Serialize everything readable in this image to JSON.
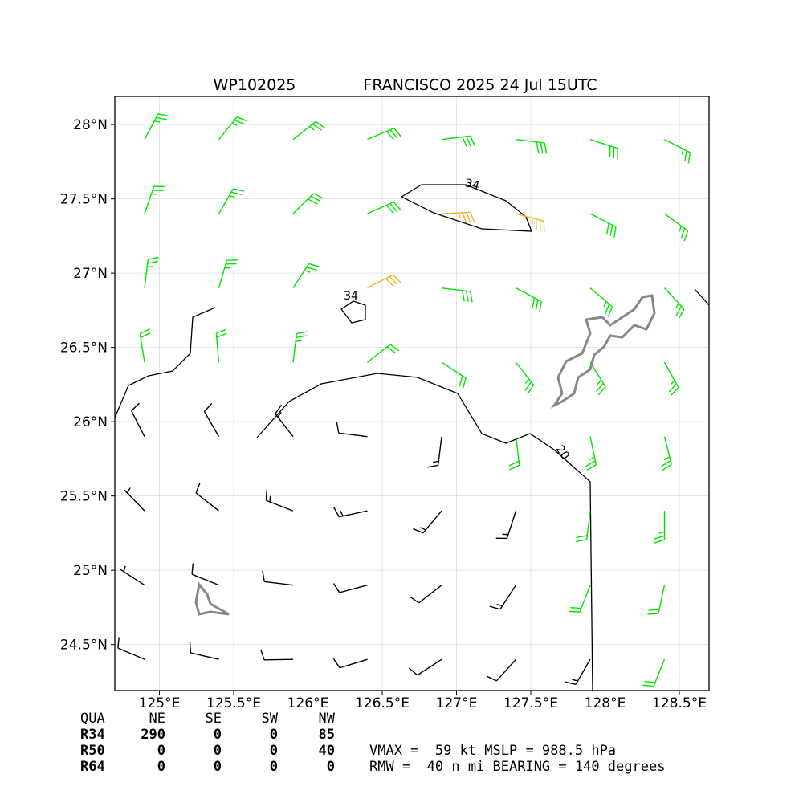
{
  "chart_data": {
    "type": "barbs",
    "title": "WP102025",
    "subtitle": "FRANCISCO 2025 24 Jul 15UTC",
    "xlim": [
      124.7,
      128.7
    ],
    "ylim": [
      24.19,
      28.19
    ],
    "xticks": [
      {
        "value": 125,
        "label": "125°E"
      },
      {
        "value": 125.5,
        "label": "125.5°E"
      },
      {
        "value": 126,
        "label": "126°E"
      },
      {
        "value": 126.5,
        "label": "126.5°E"
      },
      {
        "value": 127,
        "label": "127°E"
      },
      {
        "value": 127.5,
        "label": "127.5°E"
      },
      {
        "value": 128,
        "label": "128°E"
      },
      {
        "value": 128.5,
        "label": "128.5°E"
      }
    ],
    "yticks": [
      {
        "value": 24.5,
        "label": "24.5°N"
      },
      {
        "value": 25,
        "label": "25°N"
      },
      {
        "value": 25.5,
        "label": "25.5°N"
      },
      {
        "value": 26,
        "label": "26°N"
      },
      {
        "value": 26.5,
        "label": "26.5°N"
      },
      {
        "value": 27,
        "label": "27°N"
      },
      {
        "value": 27.5,
        "label": "27.5°N"
      },
      {
        "value": 28,
        "label": "28°N"
      }
    ],
    "grid": true,
    "levels": [
      20,
      34
    ],
    "colors": [
      "#000000",
      "#00e400",
      "#f0b428"
    ],
    "lons": [
      124.9,
      125.4,
      125.9,
      126.4,
      126.9,
      127.4,
      127.9,
      128.4
    ],
    "lats": [
      24.4,
      24.9,
      25.4,
      25.9,
      26.4,
      26.9,
      27.4,
      27.9
    ],
    "speed": [
      [
        10,
        10,
        12,
        12,
        12,
        14,
        18,
        22
      ],
      [
        8,
        10,
        14,
        14,
        14,
        16,
        20,
        24
      ],
      [
        8,
        12,
        16,
        18,
        18,
        18,
        22,
        26
      ],
      [
        10,
        14,
        15,
        10,
        16,
        22,
        28,
        28
      ],
      [
        20,
        24,
        26,
        22,
        24,
        28,
        28,
        28
      ],
      [
        26,
        27,
        28,
        34,
        30,
        30,
        28,
        28
      ],
      [
        28,
        28,
        30,
        32,
        36,
        36,
        30,
        28
      ],
      [
        28,
        28,
        28,
        30,
        32,
        33,
        30,
        28
      ]
    ],
    "direction": [
      [
        293,
        283,
        269,
        253,
        237,
        222,
        210,
        202
      ],
      [
        303,
        292,
        277,
        255,
        232,
        213,
        201,
        192
      ],
      [
        316,
        308,
        291,
        258,
        220,
        198,
        187,
        180
      ],
      [
        333,
        330,
        322,
        277,
        187,
        173,
        168,
        166
      ],
      [
        351,
        355,
        7,
        52,
        123,
        142,
        148,
        151
      ],
      [
        7,
        16,
        33,
        63,
        97,
        118,
        130,
        137
      ],
      [
        19,
        30,
        45,
        66,
        87,
        105,
        117,
        126
      ],
      [
        28,
        39,
        52,
        67,
        83,
        97,
        108,
        117
      ]
    ]
  },
  "table": {
    "header": [
      "QUA",
      "NE",
      "SE",
      "SW",
      "NW"
    ],
    "rows": [
      [
        "R34",
        290,
        0,
        0,
        85
      ],
      [
        "R50",
        0,
        0,
        0,
        40
      ],
      [
        "R64",
        0,
        0,
        0,
        0
      ]
    ]
  },
  "info": [
    "VMAX =  59 kt MSLP = 988.5 hPa",
    "RMW =  40 n mi BEARING = 140 degrees"
  ]
}
